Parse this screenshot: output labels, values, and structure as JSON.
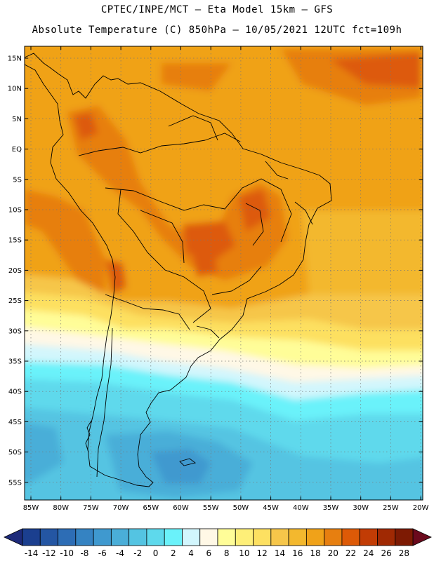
{
  "header": {
    "title_line1": "CPTEC/INPE/MCT —  Eta Model 15km — GFS",
    "title_line2": "Absolute Temperature (C) 850hPa — 10/05/2021 12UTC fct=109h"
  },
  "map": {
    "lat_labels": [
      "15N",
      "10N",
      "5N",
      "EQ",
      "5S",
      "10S",
      "15S",
      "20S",
      "25S",
      "30S",
      "35S",
      "40S",
      "45S",
      "50S",
      "55S"
    ],
    "lon_labels": [
      "85W",
      "80W",
      "75W",
      "70W",
      "65W",
      "60W",
      "55W",
      "50W",
      "45W",
      "40W",
      "35W",
      "30W",
      "25W",
      "20W"
    ]
  },
  "colorbar": {
    "labels": [
      "-14",
      "-12",
      "-10",
      "-8",
      "-6",
      "-4",
      "-2",
      "0",
      "2",
      "4",
      "6",
      "8",
      "10",
      "12",
      "14",
      "16",
      "18",
      "20",
      "22",
      "24",
      "26",
      "28"
    ],
    "colors": [
      "#1b3f8f",
      "#2456a3",
      "#2d6db5",
      "#3583c2",
      "#3f99cf",
      "#4aaed8",
      "#54c4e2",
      "#5ed9ec",
      "#6af2fa",
      "#d2f6fd",
      "#fff8e6",
      "#fffd98",
      "#feef78",
      "#fde061",
      "#f6c64a",
      "#f3b82e",
      "#f0a219",
      "#e77f10",
      "#dd5a07",
      "#c23c05",
      "#a02903",
      "#7d1a03"
    ],
    "low_color": "#1d2a7a",
    "high_color": "#6b0a1d"
  }
}
